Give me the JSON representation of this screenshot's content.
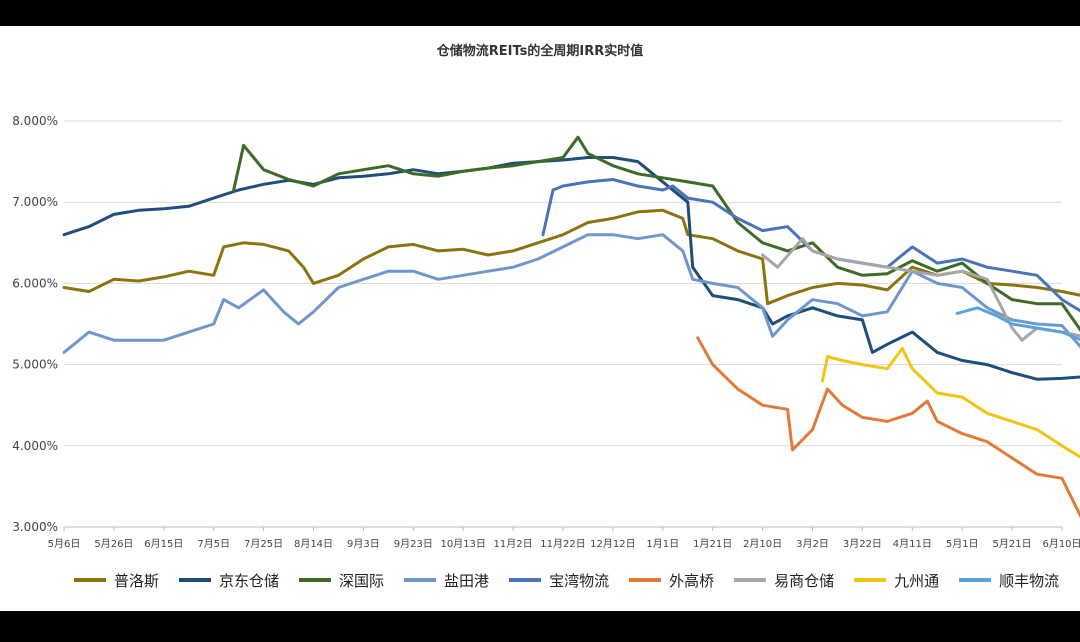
{
  "chart_data": {
    "type": "line",
    "title": "仓储物流REITs的全周期IRR实时值",
    "xlabel": "",
    "ylabel": "",
    "ylim": [
      0.03,
      0.08
    ],
    "yticks": [
      "3.000%",
      "4.000%",
      "5.000%",
      "6.000%",
      "7.000%",
      "8.000%"
    ],
    "x_tick_labels": [
      "5月6日",
      "5月26日",
      "6月15日",
      "7月5日",
      "7月25日",
      "8月14日",
      "9月3日",
      "9月23日",
      "10月13日",
      "11月2日",
      "11月22日",
      "12月12日",
      "1月1日",
      "1月21日",
      "2月10日",
      "3月2日",
      "3月22日",
      "4月11日",
      "5月1日",
      "5月21日",
      "6月10日"
    ],
    "grid": true,
    "legend_position": "bottom",
    "series": [
      {
        "name": "普洛斯",
        "color": "#8B7410",
        "points": [
          [
            0,
            0.0595
          ],
          [
            0.5,
            0.059
          ],
          [
            1,
            0.0605
          ],
          [
            1.5,
            0.0603
          ],
          [
            2,
            0.0608
          ],
          [
            2.5,
            0.0615
          ],
          [
            3,
            0.061
          ],
          [
            3.2,
            0.0645
          ],
          [
            3.6,
            0.065
          ],
          [
            4,
            0.0648
          ],
          [
            4.5,
            0.064
          ],
          [
            4.8,
            0.062
          ],
          [
            5,
            0.06
          ],
          [
            5.5,
            0.061
          ],
          [
            6,
            0.063
          ],
          [
            6.5,
            0.0645
          ],
          [
            7,
            0.0648
          ],
          [
            7.5,
            0.064
          ],
          [
            8,
            0.0642
          ],
          [
            8.5,
            0.0635
          ],
          [
            9,
            0.064
          ],
          [
            9.5,
            0.065
          ],
          [
            10,
            0.066
          ],
          [
            10.5,
            0.0675
          ],
          [
            11,
            0.068
          ],
          [
            11.5,
            0.0688
          ],
          [
            12,
            0.069
          ],
          [
            12.4,
            0.068
          ],
          [
            12.5,
            0.066
          ],
          [
            13,
            0.0655
          ],
          [
            13.5,
            0.064
          ],
          [
            14,
            0.063
          ],
          [
            14.1,
            0.0575
          ],
          [
            14.5,
            0.0585
          ],
          [
            15,
            0.0595
          ],
          [
            15.5,
            0.06
          ],
          [
            16,
            0.0598
          ],
          [
            16.5,
            0.0592
          ],
          [
            17,
            0.062
          ],
          [
            17.5,
            0.061
          ],
          [
            18,
            0.0615
          ],
          [
            18.5,
            0.06
          ],
          [
            19,
            0.0598
          ],
          [
            19.5,
            0.0595
          ],
          [
            20,
            0.059
          ],
          [
            20.4,
            0.0585
          ]
        ]
      },
      {
        "name": "京东仓储",
        "color": "#1F4E79",
        "points": [
          [
            0,
            0.066
          ],
          [
            0.5,
            0.067
          ],
          [
            1,
            0.0685
          ],
          [
            1.5,
            0.069
          ],
          [
            2,
            0.0692
          ],
          [
            2.5,
            0.0695
          ],
          [
            3,
            0.0705
          ],
          [
            3.5,
            0.0715
          ],
          [
            4,
            0.0722
          ],
          [
            4.5,
            0.0727
          ],
          [
            5,
            0.0722
          ],
          [
            5.5,
            0.073
          ],
          [
            6,
            0.0732
          ],
          [
            6.5,
            0.0735
          ],
          [
            7,
            0.074
          ],
          [
            7.5,
            0.0735
          ],
          [
            8,
            0.0738
          ],
          [
            8.5,
            0.0742
          ],
          [
            9,
            0.0748
          ],
          [
            9.5,
            0.075
          ],
          [
            10,
            0.0752
          ],
          [
            10.5,
            0.0755
          ],
          [
            11,
            0.0755
          ],
          [
            11.5,
            0.075
          ],
          [
            12,
            0.0725
          ],
          [
            12.5,
            0.07
          ],
          [
            12.6,
            0.062
          ],
          [
            13,
            0.0585
          ],
          [
            13.5,
            0.058
          ],
          [
            14,
            0.057
          ],
          [
            14.2,
            0.055
          ],
          [
            14.5,
            0.056
          ],
          [
            15,
            0.057
          ],
          [
            15.5,
            0.056
          ],
          [
            16,
            0.0555
          ],
          [
            16.2,
            0.0515
          ],
          [
            16.5,
            0.0525
          ],
          [
            17,
            0.054
          ],
          [
            17.5,
            0.0515
          ],
          [
            18,
            0.0505
          ],
          [
            18.5,
            0.05
          ],
          [
            19,
            0.049
          ],
          [
            19.5,
            0.0482
          ],
          [
            20,
            0.0483
          ],
          [
            20.4,
            0.0485
          ]
        ]
      },
      {
        "name": "深国际",
        "color": "#3D6B25",
        "points": [
          [
            3.4,
            0.0715
          ],
          [
            3.6,
            0.077
          ],
          [
            3.8,
            0.0755
          ],
          [
            4,
            0.074
          ],
          [
            4.5,
            0.0728
          ],
          [
            5,
            0.072
          ],
          [
            5.5,
            0.0735
          ],
          [
            6,
            0.074
          ],
          [
            6.5,
            0.0745
          ],
          [
            7,
            0.0735
          ],
          [
            7.5,
            0.0732
          ],
          [
            8,
            0.0738
          ],
          [
            8.5,
            0.0742
          ],
          [
            9,
            0.0745
          ],
          [
            9.5,
            0.075
          ],
          [
            10,
            0.0755
          ],
          [
            10.3,
            0.078
          ],
          [
            10.5,
            0.076
          ],
          [
            11,
            0.0745
          ],
          [
            11.5,
            0.0735
          ],
          [
            12,
            0.073
          ],
          [
            12.5,
            0.0725
          ],
          [
            13,
            0.072
          ],
          [
            13.5,
            0.0675
          ],
          [
            14,
            0.065
          ],
          [
            14.5,
            0.064
          ],
          [
            15,
            0.065
          ],
          [
            15.5,
            0.062
          ],
          [
            16,
            0.061
          ],
          [
            16.5,
            0.0612
          ],
          [
            17,
            0.0628
          ],
          [
            17.5,
            0.0615
          ],
          [
            18,
            0.0625
          ],
          [
            18.5,
            0.06
          ],
          [
            19,
            0.058
          ],
          [
            19.5,
            0.0575
          ],
          [
            20,
            0.0575
          ],
          [
            20.4,
            0.054
          ]
        ]
      },
      {
        "name": "盐田港",
        "color": "#6F97CC",
        "points": [
          [
            0,
            0.0515
          ],
          [
            0.5,
            0.054
          ],
          [
            1,
            0.053
          ],
          [
            1.5,
            0.053
          ],
          [
            2,
            0.053
          ],
          [
            2.5,
            0.054
          ],
          [
            3,
            0.055
          ],
          [
            3.2,
            0.058
          ],
          [
            3.5,
            0.057
          ],
          [
            4,
            0.0592
          ],
          [
            4.4,
            0.0565
          ],
          [
            4.7,
            0.055
          ],
          [
            5,
            0.0565
          ],
          [
            5.5,
            0.0595
          ],
          [
            6,
            0.0605
          ],
          [
            6.5,
            0.0615
          ],
          [
            7,
            0.0615
          ],
          [
            7.5,
            0.0605
          ],
          [
            8,
            0.061
          ],
          [
            8.5,
            0.0615
          ],
          [
            9,
            0.062
          ],
          [
            9.5,
            0.063
          ],
          [
            10,
            0.0645
          ],
          [
            10.5,
            0.066
          ],
          [
            11,
            0.066
          ],
          [
            11.5,
            0.0655
          ],
          [
            12,
            0.066
          ],
          [
            12.4,
            0.064
          ],
          [
            12.6,
            0.0605
          ],
          [
            13,
            0.06
          ],
          [
            13.5,
            0.0595
          ],
          [
            14,
            0.057
          ],
          [
            14.2,
            0.0535
          ],
          [
            14.5,
            0.0555
          ],
          [
            15,
            0.058
          ],
          [
            15.5,
            0.0575
          ],
          [
            16,
            0.056
          ],
          [
            16.5,
            0.0565
          ],
          [
            17,
            0.0615
          ],
          [
            17.5,
            0.06
          ],
          [
            18,
            0.0595
          ],
          [
            18.5,
            0.057
          ],
          [
            19,
            0.0555
          ],
          [
            19.5,
            0.055
          ],
          [
            20,
            0.0548
          ],
          [
            20.4,
            0.052
          ]
        ]
      },
      {
        "name": "宝湾物流",
        "color": "#4A73B8",
        "points": [
          [
            9.6,
            0.066
          ],
          [
            9.8,
            0.0715
          ],
          [
            10,
            0.072
          ],
          [
            10.5,
            0.0725
          ],
          [
            11,
            0.0728
          ],
          [
            11.5,
            0.072
          ],
          [
            12,
            0.0715
          ],
          [
            12.2,
            0.072
          ],
          [
            12.5,
            0.0705
          ],
          [
            13,
            0.07
          ],
          [
            13.5,
            0.068
          ],
          [
            14,
            0.0665
          ],
          [
            14.5,
            0.067
          ],
          [
            15,
            0.064
          ],
          [
            15.5,
            0.063
          ],
          [
            16,
            0.0625
          ],
          [
            16.5,
            0.062
          ],
          [
            17,
            0.0645
          ],
          [
            17.5,
            0.0625
          ],
          [
            18,
            0.063
          ],
          [
            18.5,
            0.062
          ],
          [
            19,
            0.0615
          ],
          [
            19.5,
            0.061
          ],
          [
            20,
            0.058
          ],
          [
            20.4,
            0.0565
          ]
        ]
      },
      {
        "name": "外高桥",
        "color": "#E07B39",
        "points": [
          [
            12.7,
            0.0533
          ],
          [
            13,
            0.05
          ],
          [
            13.5,
            0.047
          ],
          [
            14,
            0.045
          ],
          [
            14.5,
            0.0445
          ],
          [
            14.6,
            0.0395
          ],
          [
            15,
            0.042
          ],
          [
            15.3,
            0.047
          ],
          [
            15.6,
            0.045
          ],
          [
            16,
            0.0435
          ],
          [
            16.5,
            0.043
          ],
          [
            17,
            0.044
          ],
          [
            17.3,
            0.0455
          ],
          [
            17.5,
            0.043
          ],
          [
            18,
            0.0415
          ],
          [
            18.5,
            0.0405
          ],
          [
            19,
            0.0385
          ],
          [
            19.5,
            0.0365
          ],
          [
            20,
            0.036
          ],
          [
            20.2,
            0.0335
          ],
          [
            20.4,
            0.031
          ]
        ]
      },
      {
        "name": "易商仓储",
        "color": "#A6A6A6",
        "points": [
          [
            14,
            0.0635
          ],
          [
            14.3,
            0.062
          ],
          [
            14.8,
            0.0655
          ],
          [
            15,
            0.064
          ],
          [
            15.5,
            0.063
          ],
          [
            16,
            0.0625
          ],
          [
            16.5,
            0.062
          ],
          [
            17,
            0.0615
          ],
          [
            17.5,
            0.061
          ],
          [
            18,
            0.0615
          ],
          [
            18.5,
            0.0605
          ],
          [
            19,
            0.0545
          ],
          [
            19.2,
            0.053
          ],
          [
            19.5,
            0.0545
          ],
          [
            20,
            0.054
          ],
          [
            20.4,
            0.0535
          ]
        ]
      },
      {
        "name": "九州通",
        "color": "#F2C513",
        "points": [
          [
            15.2,
            0.048
          ],
          [
            15.3,
            0.051
          ],
          [
            15.6,
            0.0505
          ],
          [
            16,
            0.05
          ],
          [
            16.5,
            0.0495
          ],
          [
            16.8,
            0.052
          ],
          [
            17,
            0.0495
          ],
          [
            17.5,
            0.0465
          ],
          [
            18,
            0.046
          ],
          [
            18.5,
            0.044
          ],
          [
            19,
            0.043
          ],
          [
            19.5,
            0.042
          ],
          [
            20,
            0.04
          ],
          [
            20.4,
            0.0385
          ]
        ]
      },
      {
        "name": "顺丰物流",
        "color": "#5BA3D6",
        "points": [
          [
            17.9,
            0.0563
          ],
          [
            18.3,
            0.057
          ],
          [
            18.7,
            0.056
          ],
          [
            19,
            0.055
          ],
          [
            19.5,
            0.0545
          ],
          [
            20,
            0.054
          ],
          [
            20.4,
            0.053
          ]
        ]
      }
    ]
  }
}
